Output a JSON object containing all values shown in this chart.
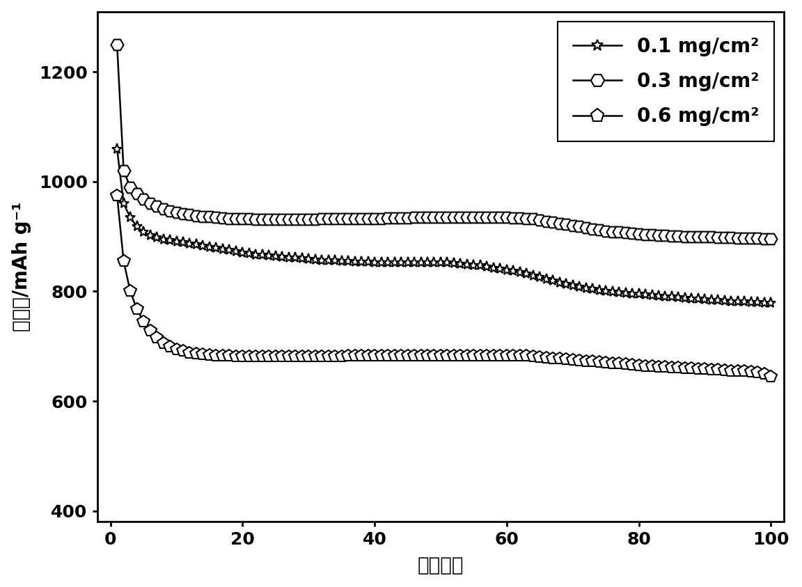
{
  "title": "",
  "xlabel": "循环次数",
  "ylabel": "比容量/mAh g⁻¹",
  "xlim": [
    -2,
    102
  ],
  "ylim": [
    380,
    1310
  ],
  "yticks": [
    400,
    600,
    800,
    1000,
    1200
  ],
  "xticks": [
    0,
    20,
    40,
    60,
    80,
    100
  ],
  "background_color": "#ffffff",
  "series": [
    {
      "label": "0.1 mg/cm²",
      "marker": "star",
      "x": [
        1,
        2,
        3,
        4,
        5,
        6,
        7,
        8,
        9,
        10,
        11,
        12,
        13,
        14,
        15,
        16,
        17,
        18,
        19,
        20,
        21,
        22,
        23,
        24,
        25,
        26,
        27,
        28,
        29,
        30,
        31,
        32,
        33,
        34,
        35,
        36,
        37,
        38,
        39,
        40,
        41,
        42,
        43,
        44,
        45,
        46,
        47,
        48,
        49,
        50,
        51,
        52,
        53,
        54,
        55,
        56,
        57,
        58,
        59,
        60,
        61,
        62,
        63,
        64,
        65,
        66,
        67,
        68,
        69,
        70,
        71,
        72,
        73,
        74,
        75,
        76,
        77,
        78,
        79,
        80,
        81,
        82,
        83,
        84,
        85,
        86,
        87,
        88,
        89,
        90,
        91,
        92,
        93,
        94,
        95,
        96,
        97,
        98,
        99,
        100
      ],
      "y": [
        1060,
        960,
        935,
        918,
        908,
        902,
        898,
        895,
        893,
        891,
        889,
        887,
        885,
        883,
        881,
        879,
        877,
        875,
        873,
        871,
        869,
        867,
        866,
        865,
        864,
        863,
        862,
        861,
        860,
        859,
        858,
        857,
        856,
        856,
        855,
        855,
        854,
        854,
        854,
        853,
        853,
        853,
        853,
        853,
        853,
        853,
        853,
        853,
        853,
        853,
        852,
        851,
        850,
        849,
        848,
        847,
        845,
        843,
        841,
        839,
        837,
        835,
        832,
        829,
        826,
        822,
        819,
        816,
        813,
        811,
        808,
        806,
        804,
        802,
        800,
        799,
        798,
        797,
        796,
        795,
        794,
        793,
        792,
        791,
        790,
        789,
        788,
        787,
        786,
        785,
        784,
        784,
        783,
        782,
        782,
        781,
        780,
        780,
        779,
        779
      ]
    },
    {
      "label": "0.3 mg/cm²",
      "marker": "hexagon",
      "x": [
        1,
        2,
        3,
        4,
        5,
        6,
        7,
        8,
        9,
        10,
        11,
        12,
        13,
        14,
        15,
        16,
        17,
        18,
        19,
        20,
        21,
        22,
        23,
        24,
        25,
        26,
        27,
        28,
        29,
        30,
        31,
        32,
        33,
        34,
        35,
        36,
        37,
        38,
        39,
        40,
        41,
        42,
        43,
        44,
        45,
        46,
        47,
        48,
        49,
        50,
        51,
        52,
        53,
        54,
        55,
        56,
        57,
        58,
        59,
        60,
        61,
        62,
        63,
        64,
        65,
        66,
        67,
        68,
        69,
        70,
        71,
        72,
        73,
        74,
        75,
        76,
        77,
        78,
        79,
        80,
        81,
        82,
        83,
        84,
        85,
        86,
        87,
        88,
        89,
        90,
        91,
        92,
        93,
        94,
        95,
        96,
        97,
        98,
        99,
        100
      ],
      "y": [
        1250,
        1020,
        990,
        978,
        968,
        960,
        955,
        950,
        947,
        944,
        942,
        940,
        938,
        937,
        936,
        935,
        934,
        933,
        933,
        932,
        932,
        931,
        931,
        931,
        931,
        931,
        931,
        931,
        931,
        931,
        931,
        932,
        932,
        932,
        932,
        932,
        933,
        933,
        933,
        933,
        933,
        934,
        934,
        934,
        934,
        935,
        935,
        935,
        935,
        935,
        935,
        935,
        935,
        935,
        935,
        935,
        935,
        935,
        935,
        935,
        934,
        934,
        933,
        932,
        930,
        928,
        926,
        924,
        922,
        920,
        918,
        916,
        914,
        912,
        910,
        909,
        908,
        907,
        906,
        905,
        904,
        903,
        902,
        902,
        901,
        901,
        900,
        900,
        899,
        899,
        899,
        898,
        898,
        898,
        897,
        897,
        897,
        897,
        896,
        896
      ]
    },
    {
      "label": "0.6 mg/cm²",
      "marker": "pentagon",
      "x": [
        1,
        2,
        3,
        4,
        5,
        6,
        7,
        8,
        9,
        10,
        11,
        12,
        13,
        14,
        15,
        16,
        17,
        18,
        19,
        20,
        21,
        22,
        23,
        24,
        25,
        26,
        27,
        28,
        29,
        30,
        31,
        32,
        33,
        34,
        35,
        36,
        37,
        38,
        39,
        40,
        41,
        42,
        43,
        44,
        45,
        46,
        47,
        48,
        49,
        50,
        51,
        52,
        53,
        54,
        55,
        56,
        57,
        58,
        59,
        60,
        61,
        62,
        63,
        64,
        65,
        66,
        67,
        68,
        69,
        70,
        71,
        72,
        73,
        74,
        75,
        76,
        77,
        78,
        79,
        80,
        81,
        82,
        83,
        84,
        85,
        86,
        87,
        88,
        89,
        90,
        91,
        92,
        93,
        94,
        95,
        96,
        97,
        98,
        99,
        100
      ],
      "y": [
        975,
        855,
        800,
        768,
        745,
        728,
        715,
        706,
        699,
        694,
        691,
        688,
        686,
        685,
        684,
        683,
        682,
        682,
        681,
        681,
        681,
        681,
        681,
        681,
        681,
        681,
        681,
        681,
        681,
        681,
        681,
        681,
        681,
        681,
        681,
        682,
        682,
        682,
        682,
        682,
        682,
        682,
        682,
        682,
        683,
        683,
        683,
        683,
        683,
        683,
        683,
        683,
        683,
        683,
        683,
        683,
        683,
        683,
        683,
        683,
        683,
        682,
        682,
        681,
        680,
        679,
        678,
        677,
        676,
        675,
        674,
        673,
        672,
        671,
        670,
        669,
        668,
        667,
        666,
        665,
        664,
        663,
        662,
        662,
        661,
        661,
        660,
        660,
        659,
        658,
        657,
        657,
        656,
        655,
        655,
        654,
        653,
        652,
        649,
        644
      ]
    }
  ],
  "legend_loc": "upper right",
  "font_size": 20,
  "tick_font_size": 18,
  "marker_size": 11,
  "line_width": 1.8
}
